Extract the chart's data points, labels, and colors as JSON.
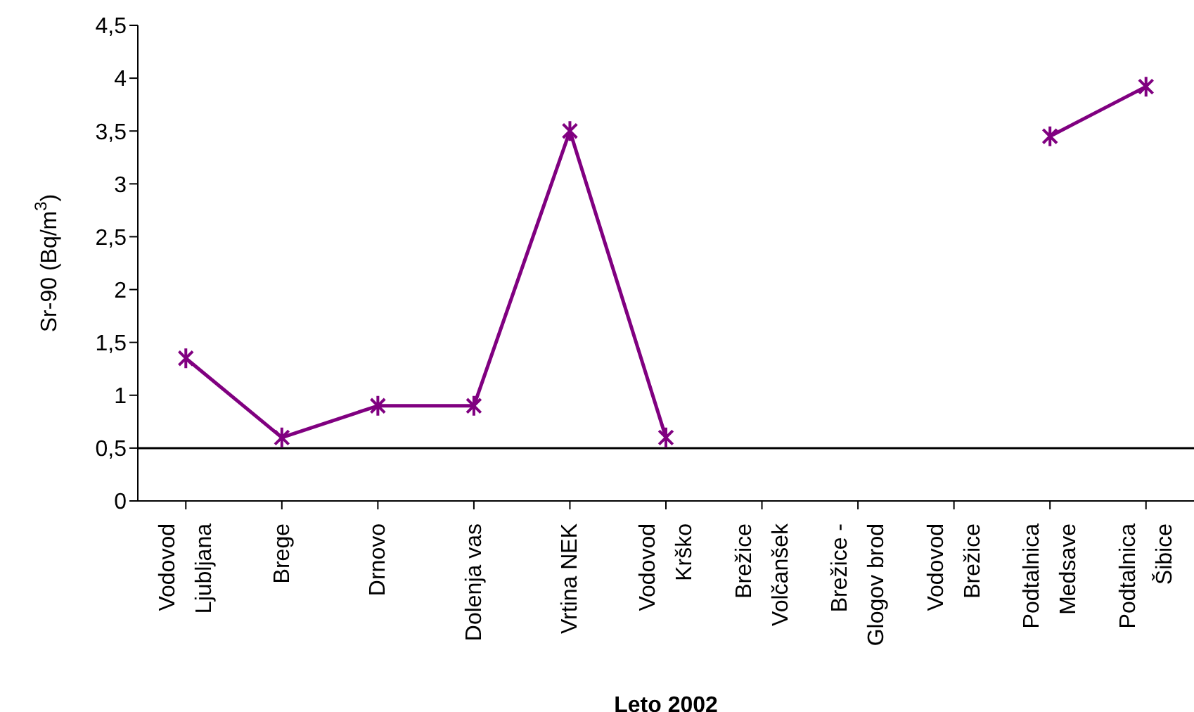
{
  "chart_data": {
    "type": "line",
    "xlabel": "Leto 2002",
    "ylabel": "Sr-90 (Bq/m$^{3}$)",
    "categories": [
      "Vodovod\nLjubljana",
      "Brege",
      "Drnovo",
      "Dolenja vas",
      "Vrtina NEK",
      "Vodovod\nKrško",
      "Brežice\nVolčanšek",
      "Brežice -\nGlogov brod",
      "Vodovod\nBrežice",
      "Podtalnica\nMedsave",
      "Podtalnica\nŠibice"
    ],
    "series": [
      {
        "color": "#800080",
        "values": [
          1.35,
          0.6,
          0.9,
          0.9,
          3.5,
          0.6,
          null,
          null,
          null,
          3.45,
          3.92
        ]
      }
    ],
    "ylim": [
      0,
      4.5
    ],
    "yticks": [
      {
        "value": 0,
        "label": "0"
      },
      {
        "value": 0.5,
        "label": "0,5"
      },
      {
        "value": 1,
        "label": "1"
      },
      {
        "value": 1.5,
        "label": "1,5"
      },
      {
        "value": 2,
        "label": "2"
      },
      {
        "value": 2.5,
        "label": "2,5"
      },
      {
        "value": 3,
        "label": "3"
      },
      {
        "value": 3.5,
        "label": "3,5"
      },
      {
        "value": 4,
        "label": "4"
      },
      {
        "value": 4.5,
        "label": "4,5"
      }
    ],
    "ref_lines": [
      {
        "axis": "y",
        "value": 0.5,
        "color": "#000000"
      }
    ],
    "grid": false,
    "legend": false,
    "marker": "cross",
    "line_style": "solid"
  }
}
